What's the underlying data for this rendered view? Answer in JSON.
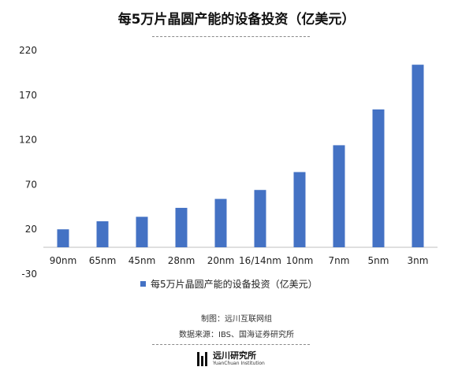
{
  "title": "每5万片晶圆产能的设备投资（亿美元）",
  "chart_data": {
    "type": "bar",
    "categories": [
      "90nm",
      "65nm",
      "45nm",
      "28nm",
      "20nm",
      "16/14nm",
      "10nm",
      "7nm",
      "5nm",
      "3nm"
    ],
    "series": [
      {
        "name": "每5万片晶圆产能的设备投资（亿美元）",
        "values": [
          20,
          29,
          34,
          44,
          54,
          64,
          84,
          114,
          154,
          204
        ]
      }
    ],
    "y_ticks": [
      220,
      170,
      120,
      70,
      20,
      -30
    ],
    "ylim": [
      -30,
      220
    ],
    "grid": false,
    "legend": "bottom",
    "bar_color": "#4472c4"
  },
  "notes": {
    "chart_by": "制图：远川互联网组",
    "source": "数据来源：IBS、国海证券研究所"
  },
  "brand": {
    "name": "远川研究所",
    "sub": "YuanChuan Institution"
  }
}
